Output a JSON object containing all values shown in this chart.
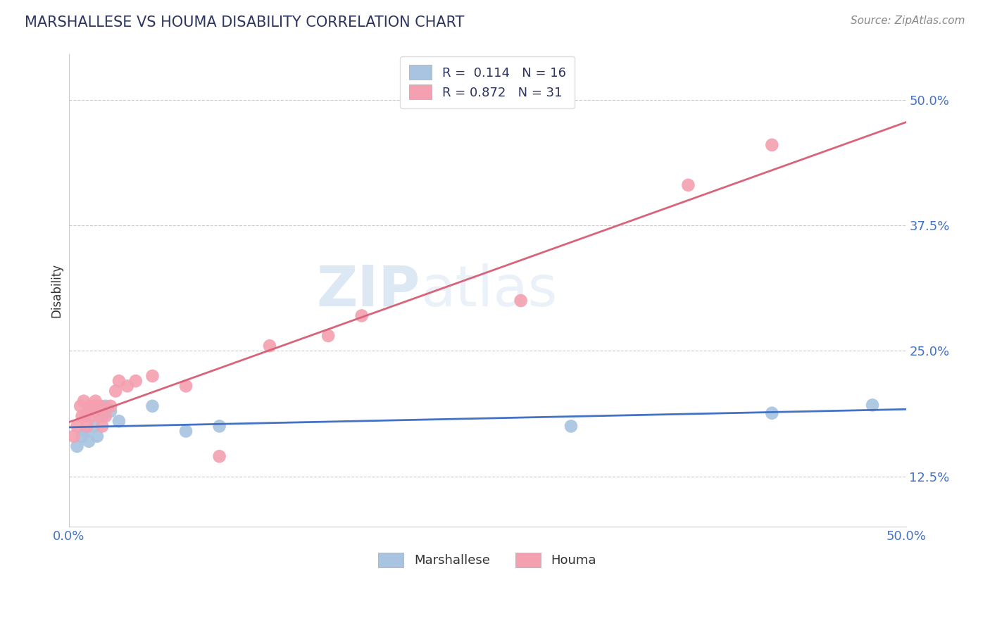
{
  "title": "MARSHALLESE VS HOUMA DISABILITY CORRELATION CHART",
  "source": "Source: ZipAtlas.com",
  "ylabel": "Disability",
  "xlim": [
    0.0,
    0.5
  ],
  "ylim": [
    0.075,
    0.545
  ],
  "yticks": [
    0.125,
    0.25,
    0.375,
    0.5
  ],
  "ytick_labels": [
    "12.5%",
    "25.0%",
    "37.5%",
    "50.0%"
  ],
  "watermark_zip": "ZIP",
  "watermark_atlas": "atlas",
  "marshallese_color": "#a8c4e0",
  "houma_color": "#f4a0b0",
  "marshallese_line_color": "#4472c4",
  "houma_line_color": "#d9637a",
  "marshallese_x": [
    0.005,
    0.008,
    0.01,
    0.012,
    0.015,
    0.017,
    0.02,
    0.022,
    0.025,
    0.03,
    0.05,
    0.07,
    0.09,
    0.3,
    0.42,
    0.48
  ],
  "marshallese_y": [
    0.155,
    0.165,
    0.17,
    0.16,
    0.175,
    0.165,
    0.185,
    0.195,
    0.19,
    0.18,
    0.195,
    0.17,
    0.175,
    0.175,
    0.188,
    0.196
  ],
  "houma_x": [
    0.003,
    0.005,
    0.007,
    0.008,
    0.009,
    0.01,
    0.011,
    0.012,
    0.013,
    0.014,
    0.015,
    0.016,
    0.017,
    0.018,
    0.019,
    0.02,
    0.022,
    0.025,
    0.028,
    0.03,
    0.035,
    0.04,
    0.05,
    0.07,
    0.09,
    0.12,
    0.155,
    0.175,
    0.27,
    0.37,
    0.42
  ],
  "houma_y": [
    0.165,
    0.175,
    0.195,
    0.185,
    0.2,
    0.185,
    0.175,
    0.19,
    0.195,
    0.185,
    0.195,
    0.2,
    0.195,
    0.185,
    0.195,
    0.175,
    0.185,
    0.195,
    0.21,
    0.22,
    0.215,
    0.22,
    0.225,
    0.215,
    0.145,
    0.255,
    0.265,
    0.285,
    0.3,
    0.415,
    0.455
  ],
  "background_color": "#ffffff",
  "grid_color": "#cccccc",
  "title_color": "#2d3561",
  "source_color": "#888888",
  "axis_label_color": "#4472c4",
  "ylabel_color": "#333333"
}
